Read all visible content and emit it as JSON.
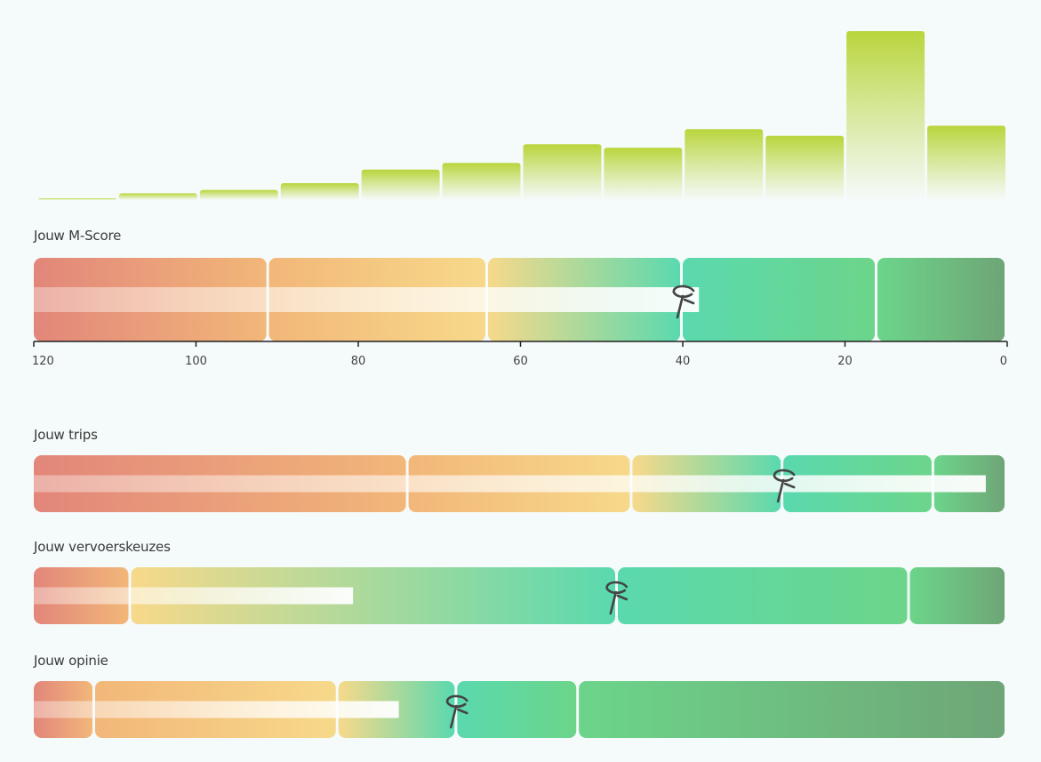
{
  "colors": {
    "histogram_top": "#b9d53c",
    "histogram_bottom": "#f5fafa",
    "red": "#e2867a",
    "orange": "#f2b779",
    "yellow": "#f7d98a",
    "turquoise": "#5ad9ae",
    "green": "#6cd58a",
    "dark_green": "#6fa577",
    "progress": "#ffffff",
    "marker": "#444444"
  },
  "marker_icon": "pin-icon",
  "chart_data": {
    "type": "bar",
    "histogram": {
      "values": [
        1,
        4,
        6,
        10,
        18,
        22,
        33,
        31,
        42,
        38,
        100,
        44
      ],
      "x_range": [
        120,
        0
      ]
    },
    "axis": {
      "range": [
        120,
        0
      ],
      "ticks": [
        "120",
        "100",
        "80",
        "60",
        "40",
        "20",
        "0"
      ]
    },
    "gauges": [
      {
        "id": "mscore",
        "label": "Jouw M-Score",
        "value": 38,
        "scale": [
          120,
          0
        ],
        "segments": [
          {
            "from": 120,
            "to": 91,
            "color": "red_to_orange"
          },
          {
            "from": 91,
            "to": 64,
            "color": "orange_to_yellow"
          },
          {
            "from": 64,
            "to": 40,
            "color": "yellow_to_turquoise"
          },
          {
            "from": 40,
            "to": 16,
            "color": "turquoise_to_green"
          },
          {
            "from": 16,
            "to": 0,
            "color": "green_to_dark"
          }
        ],
        "progress_end": 38,
        "marker_at": 40
      },
      {
        "id": "trips",
        "label": "Jouw trips",
        "segments_frac": [
          0.385,
          0.23,
          0.155,
          0.155,
          0.075
        ],
        "progress_end_frac": 0.978,
        "marker_frac": 0.77
      },
      {
        "id": "vervoer",
        "label": "Jouw vervoerskeuzes",
        "segments_frac": [
          0.1,
          0.5,
          0.3,
          0.1
        ],
        "progress_end_frac": 0.328,
        "marker_frac": 0.598
      },
      {
        "id": "opinie",
        "label": "Jouw opinie",
        "segments_frac": [
          0.063,
          0.25,
          0.122,
          0.125,
          0.44
        ],
        "progress_end_frac": 0.375,
        "marker_frac": 0.434
      }
    ]
  }
}
